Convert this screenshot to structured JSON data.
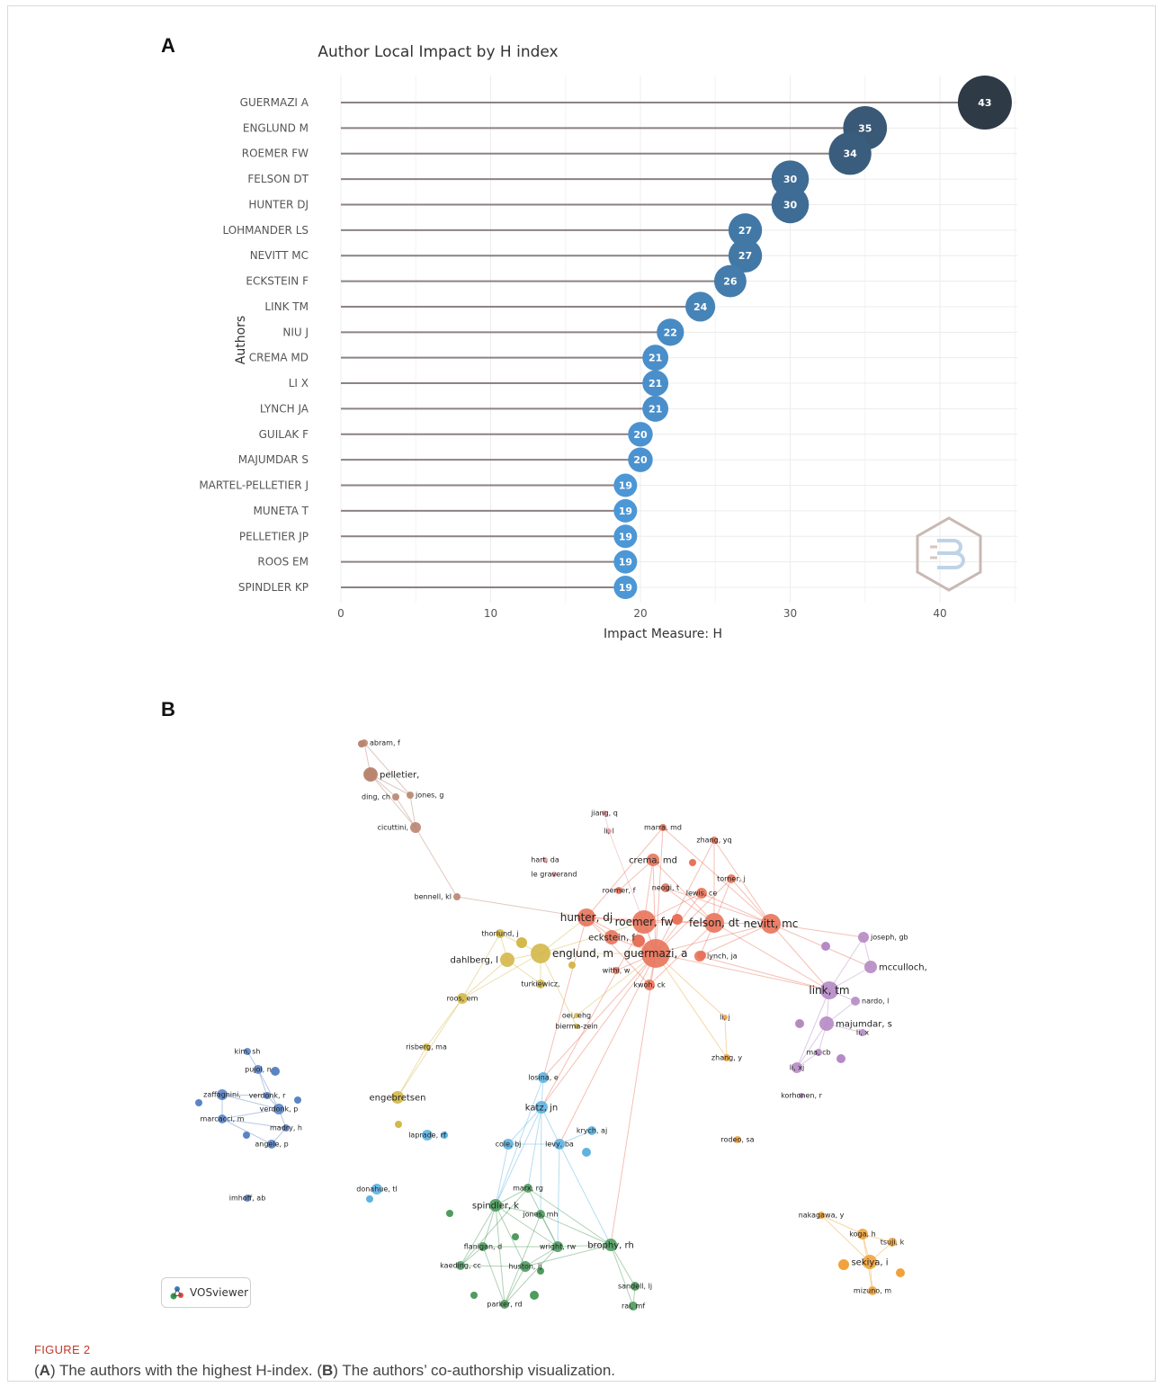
{
  "figure": {
    "label": "FIGURE 2",
    "caption_parts": [
      {
        "text": "(",
        "bold": false
      },
      {
        "text": "A",
        "bold": true
      },
      {
        "text": ") The authors with the highest H-index. (",
        "bold": false
      },
      {
        "text": "B",
        "bold": true
      },
      {
        "text": ") The authors’ co-authorship visualization.",
        "bold": false
      }
    ]
  },
  "panel_a": {
    "letter": "A"
  },
  "panel_b": {
    "letter": "B",
    "badge": "VOSviewer"
  },
  "chart_data": {
    "type": "scatter",
    "style": "lollipop",
    "title": "Author Local Impact by H index",
    "xlabel": "Impact Measure: H",
    "ylabel": "Authors",
    "xlim": [
      0,
      45
    ],
    "xticks": [
      0,
      10,
      20,
      30,
      40
    ],
    "grid": true,
    "categories": [
      "GUERMAZI A",
      "ENGLUND M",
      "ROEMER FW",
      "FELSON DT",
      "HUNTER DJ",
      "LOHMANDER LS",
      "NEVITT MC",
      "ECKSTEIN F",
      "LINK TM",
      "NIU J",
      "CREMA MD",
      "LI X",
      "LYNCH JA",
      "GUILAK F",
      "MAJUMDAR S",
      "MARTEL-PELLETIER J",
      "MUNETA T",
      "PELLETIER JP",
      "ROOS EM",
      "SPINDLER KP"
    ],
    "values": [
      43,
      35,
      34,
      30,
      30,
      27,
      27,
      26,
      24,
      22,
      21,
      21,
      21,
      20,
      20,
      19,
      19,
      19,
      19,
      19
    ],
    "colors": {
      "stem": "#8c8282",
      "high": "#2f3a47",
      "low": "#4c97d6",
      "grid": "#ececec",
      "axis_text": "#555555"
    }
  },
  "network": {
    "colors": {
      "red": "#e8735a",
      "yellow": "#d4b84a",
      "blue": "#5eb3e0",
      "green": "#4e9c5e",
      "purple": "#b58ac4",
      "brown": "#b98570",
      "steel": "#5b84c4",
      "orange": "#f0a33c",
      "pink": "#e79aa3"
    },
    "nodes": [
      {
        "label": "abram, f",
        "c": "brown"
      },
      {
        "label": "pelletier,",
        "c": "brown"
      },
      {
        "label": "ding, ch",
        "c": "brown"
      },
      {
        "label": "jones, g",
        "c": "brown"
      },
      {
        "label": "cicuttini,",
        "c": "brown"
      },
      {
        "label": "bennell, kl",
        "c": "brown"
      },
      {
        "label": "jiang, q",
        "c": "pink"
      },
      {
        "label": "li, l",
        "c": "pink"
      },
      {
        "label": "marra, md",
        "c": "red"
      },
      {
        "label": "zhang, yq",
        "c": "red"
      },
      {
        "label": "hart, da",
        "c": "pink"
      },
      {
        "label": "le graverand",
        "c": "pink"
      },
      {
        "label": "crema, md",
        "c": "red"
      },
      {
        "label": "torner, j",
        "c": "red"
      },
      {
        "label": "roemer, f",
        "c": "red"
      },
      {
        "label": "neogi, t",
        "c": "red"
      },
      {
        "label": "lewis, ce",
        "c": "red"
      },
      {
        "label": "hunter, dj",
        "c": "red"
      },
      {
        "label": "roemer, fw",
        "c": "red"
      },
      {
        "label": "felson, dt",
        "c": "red"
      },
      {
        "label": "nevitt, mc",
        "c": "red"
      },
      {
        "label": "eckstein, f",
        "c": "red"
      },
      {
        "label": "guermazi, a",
        "c": "red"
      },
      {
        "label": "lynch, ja",
        "c": "red"
      },
      {
        "label": "withi, w",
        "c": "red"
      },
      {
        "label": "kwoh, ck",
        "c": "red"
      },
      {
        "label": "thorlund, j",
        "c": "yellow"
      },
      {
        "label": "englund, m",
        "c": "yellow"
      },
      {
        "label": "dahlberg, l",
        "c": "yellow"
      },
      {
        "label": "turkiewicz,",
        "c": "yellow"
      },
      {
        "label": "roos, em",
        "c": "yellow"
      },
      {
        "label": "oei, ehg",
        "c": "yellow"
      },
      {
        "label": "bierma-zein",
        "c": "yellow"
      },
      {
        "label": "li, j",
        "c": "orange"
      },
      {
        "label": "zhang, y",
        "c": "orange"
      },
      {
        "label": "risberg, ma",
        "c": "yellow"
      },
      {
        "label": "engebretsen",
        "c": "yellow"
      },
      {
        "label": "joseph, gb",
        "c": "purple"
      },
      {
        "label": "mcculloch,",
        "c": "purple"
      },
      {
        "label": "link, tm",
        "c": "purple"
      },
      {
        "label": "nardo, l",
        "c": "purple"
      },
      {
        "label": "majumdar, s",
        "c": "purple"
      },
      {
        "label": "li, x",
        "c": "purple"
      },
      {
        "label": "ma, cb",
        "c": "purple"
      },
      {
        "label": "li, xj",
        "c": "purple"
      },
      {
        "label": "korhonen, r",
        "c": "purple"
      },
      {
        "label": "kim, sh",
        "c": "steel"
      },
      {
        "label": "pujol, n",
        "c": "steel"
      },
      {
        "label": "zaffagnini,",
        "c": "steel"
      },
      {
        "label": "verdonk, r",
        "c": "steel"
      },
      {
        "label": "verdonk, p",
        "c": "steel"
      },
      {
        "label": "marcacci, m",
        "c": "steel"
      },
      {
        "label": "madry, h",
        "c": "steel"
      },
      {
        "label": "angele, p",
        "c": "steel"
      },
      {
        "label": "imhoff, ab",
        "c": "steel"
      },
      {
        "label": "losina, e",
        "c": "blue"
      },
      {
        "label": "katz, jn",
        "c": "blue"
      },
      {
        "label": "krych, aj",
        "c": "blue"
      },
      {
        "label": "laprade, rf",
        "c": "blue"
      },
      {
        "label": "cole, bj",
        "c": "blue"
      },
      {
        "label": "levy, ba",
        "c": "blue"
      },
      {
        "label": "rodeo, sa",
        "c": "orange"
      },
      {
        "label": "donahue, tl",
        "c": "blue"
      },
      {
        "label": "marx, rg",
        "c": "green"
      },
      {
        "label": "spindler, k",
        "c": "green"
      },
      {
        "label": "jones, mh",
        "c": "green"
      },
      {
        "label": "flanigan, d",
        "c": "green"
      },
      {
        "label": "wright, rw",
        "c": "green"
      },
      {
        "label": "brophy, rh",
        "c": "green"
      },
      {
        "label": "kaeding, cc",
        "c": "green"
      },
      {
        "label": "huston, lj",
        "c": "green"
      },
      {
        "label": "sandell, lj",
        "c": "green"
      },
      {
        "label": "parker, rd",
        "c": "green"
      },
      {
        "label": "rai, mf",
        "c": "green"
      },
      {
        "label": "nakagawa, y",
        "c": "orange"
      },
      {
        "label": "koga, h",
        "c": "orange"
      },
      {
        "label": "tsuji, k",
        "c": "orange"
      },
      {
        "label": "sekiya, i",
        "c": "orange"
      },
      {
        "label": "mizuno, m",
        "c": "orange"
      }
    ]
  }
}
